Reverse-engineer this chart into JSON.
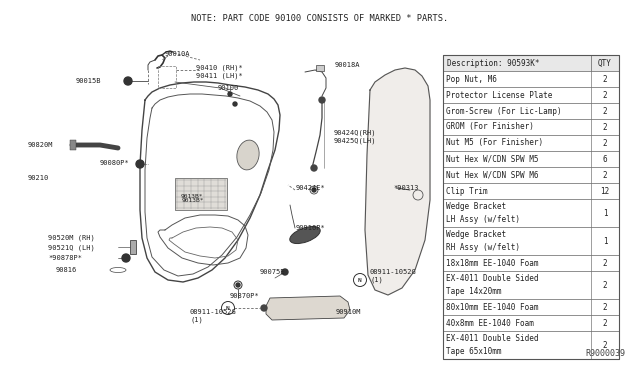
{
  "title": "NOTE: PART CODE 90100 CONSISTS OF MARKED * PARTS.",
  "ref_number": "R9000039",
  "table_header_desc": "Description: 90593K*",
  "table_header_qty": "QTY",
  "table_rows": [
    [
      "Pop Nut, M6",
      "2"
    ],
    [
      "Protector License Plate",
      "2"
    ],
    [
      "Grom-Screw (For Lic-Lamp)",
      "2"
    ],
    [
      "GROM (For Finisher)",
      "2"
    ],
    [
      "Nut M5 (For Finisher)",
      "2"
    ],
    [
      "Nut Hex W/CDN SPW M5",
      "6"
    ],
    [
      "Nut Hex W/CDN SPW M6",
      "2"
    ],
    [
      "Clip Trim",
      "12"
    ],
    [
      "Wedge Bracket\nLH Assy (w/felt)",
      "1"
    ],
    [
      "Wedge Bracket\nRH Assy (w/felt)",
      "1"
    ],
    [
      "18x18mm EE-1040 Foam",
      "2"
    ],
    [
      "EX-4011 Double Sided\nTape 14x20mm",
      "2"
    ],
    [
      "80x10mm EE-1040 Foam",
      "2"
    ],
    [
      "40x8mm EE-1040 Foam",
      "2"
    ],
    [
      "EX-4011 Double Sided\nTape 65x10mm",
      "2"
    ]
  ],
  "bg_color": "#ffffff",
  "line_color": "#555555",
  "text_color": "#222222",
  "title_color": "#222222"
}
